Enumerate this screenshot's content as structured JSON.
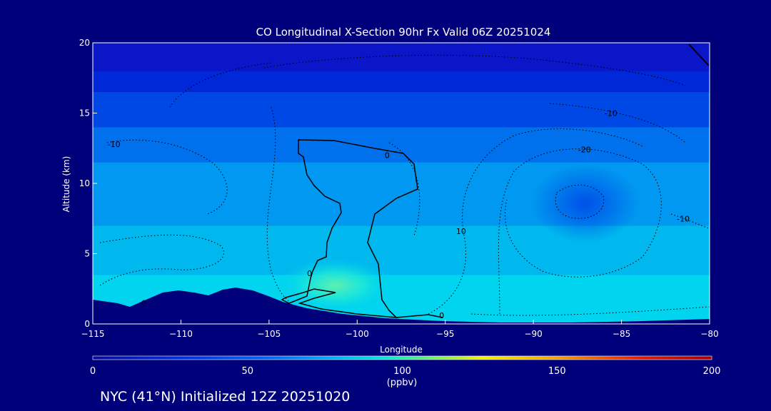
{
  "chart_data": {
    "type": "heatmap",
    "title": "CO Longitudinal X-Section 90hr  Fx Valid 06Z 20251024",
    "xlabel": "Longitude",
    "ylabel": "Altitude (km)",
    "xlim": [
      -115,
      -80
    ],
    "ylim": [
      0,
      20
    ],
    "x_ticks": [
      -115,
      -110,
      -105,
      -100,
      -95,
      -90,
      -85,
      -80
    ],
    "x_tick_labels": [
      "−115",
      "−110",
      "−105",
      "−100",
      "−95",
      "−90",
      "−85",
      "−80"
    ],
    "y_ticks": [
      0,
      5,
      10,
      15,
      20
    ],
    "y_tick_labels": [
      "0",
      "5",
      "10",
      "15",
      "20"
    ],
    "colorbar": {
      "min": 0,
      "max": 200,
      "ticks": [
        0,
        50,
        100,
        150,
        200
      ],
      "tick_labels": [
        "0",
        "50",
        "100",
        "150",
        "200"
      ],
      "label": "(ppbv)",
      "colors": [
        "#0a10b8",
        "#0040e8",
        "#0090f0",
        "#00d8f0",
        "#40f080",
        "#f0f000",
        "#f08000",
        "#d00000",
        "#a00000"
      ]
    },
    "contour_labels": [
      {
        "text": "-10",
        "lon": -113.8,
        "alt": 12.8
      },
      {
        "text": "-10",
        "lon": -85.6,
        "alt": 15.0
      },
      {
        "text": "-20",
        "lon": -87.1,
        "alt": 12.4
      },
      {
        "text": "-10",
        "lon": -81.5,
        "alt": 7.5
      },
      {
        "text": "0",
        "lon": -98.3,
        "alt": 12.0
      },
      {
        "text": "10",
        "lon": -94.1,
        "alt": 6.6
      },
      {
        "text": "0",
        "lon": -102.7,
        "alt": 3.6
      },
      {
        "text": "0",
        "lon": -112.1,
        "alt": 1.5
      },
      {
        "text": "0",
        "lon": -95.2,
        "alt": 0.6
      }
    ],
    "co_field": [
      {
        "alt_top": 20,
        "alt_bottom": 18,
        "ppbv": 30
      },
      {
        "alt_top": 18,
        "alt_bottom": 16.5,
        "ppbv": 38
      },
      {
        "alt_top": 16.5,
        "alt_bottom": 14,
        "ppbv": 46
      },
      {
        "alt_top": 14,
        "alt_bottom": 11.5,
        "ppbv": 55
      },
      {
        "alt_top": 11.5,
        "alt_bottom": 7,
        "ppbv": 62
      },
      {
        "alt_top": 7,
        "alt_bottom": 3.5,
        "ppbv": 70
      },
      {
        "alt_top": 3.5,
        "alt_bottom": 0,
        "ppbv": 80
      }
    ]
  },
  "footer": {
    "caption": "NYC (41°N) Initialized 12Z 20251020"
  }
}
